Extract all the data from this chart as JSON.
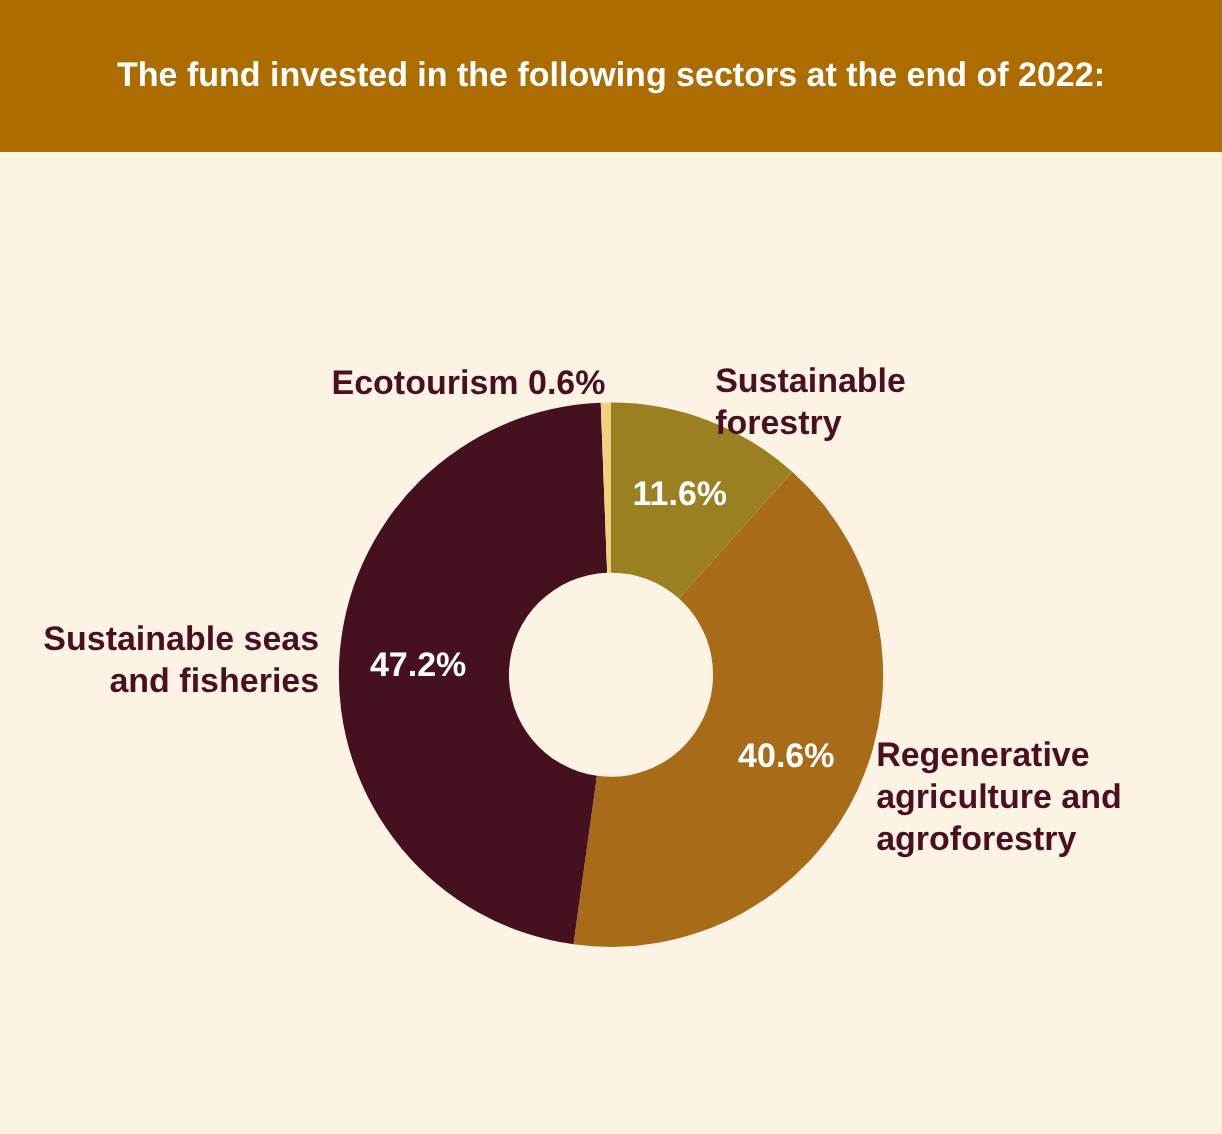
{
  "chart_data": {
    "type": "donut",
    "title": "The fund invested in the following sectors at the end of 2022:",
    "categories": [
      "Sustainable forestry",
      "Regenerative agriculture and agroforestry",
      "Sustainable seas and fisheries",
      "Ecotourism"
    ],
    "values": [
      11.6,
      40.6,
      47.2,
      0.6
    ],
    "value_labels": [
      "11.6%",
      "40.6%",
      "47.2%",
      "0.6%"
    ],
    "colors": [
      "#9a8020",
      "#a86b18",
      "#45111f",
      "#f2d27e"
    ],
    "legend": false
  }
}
